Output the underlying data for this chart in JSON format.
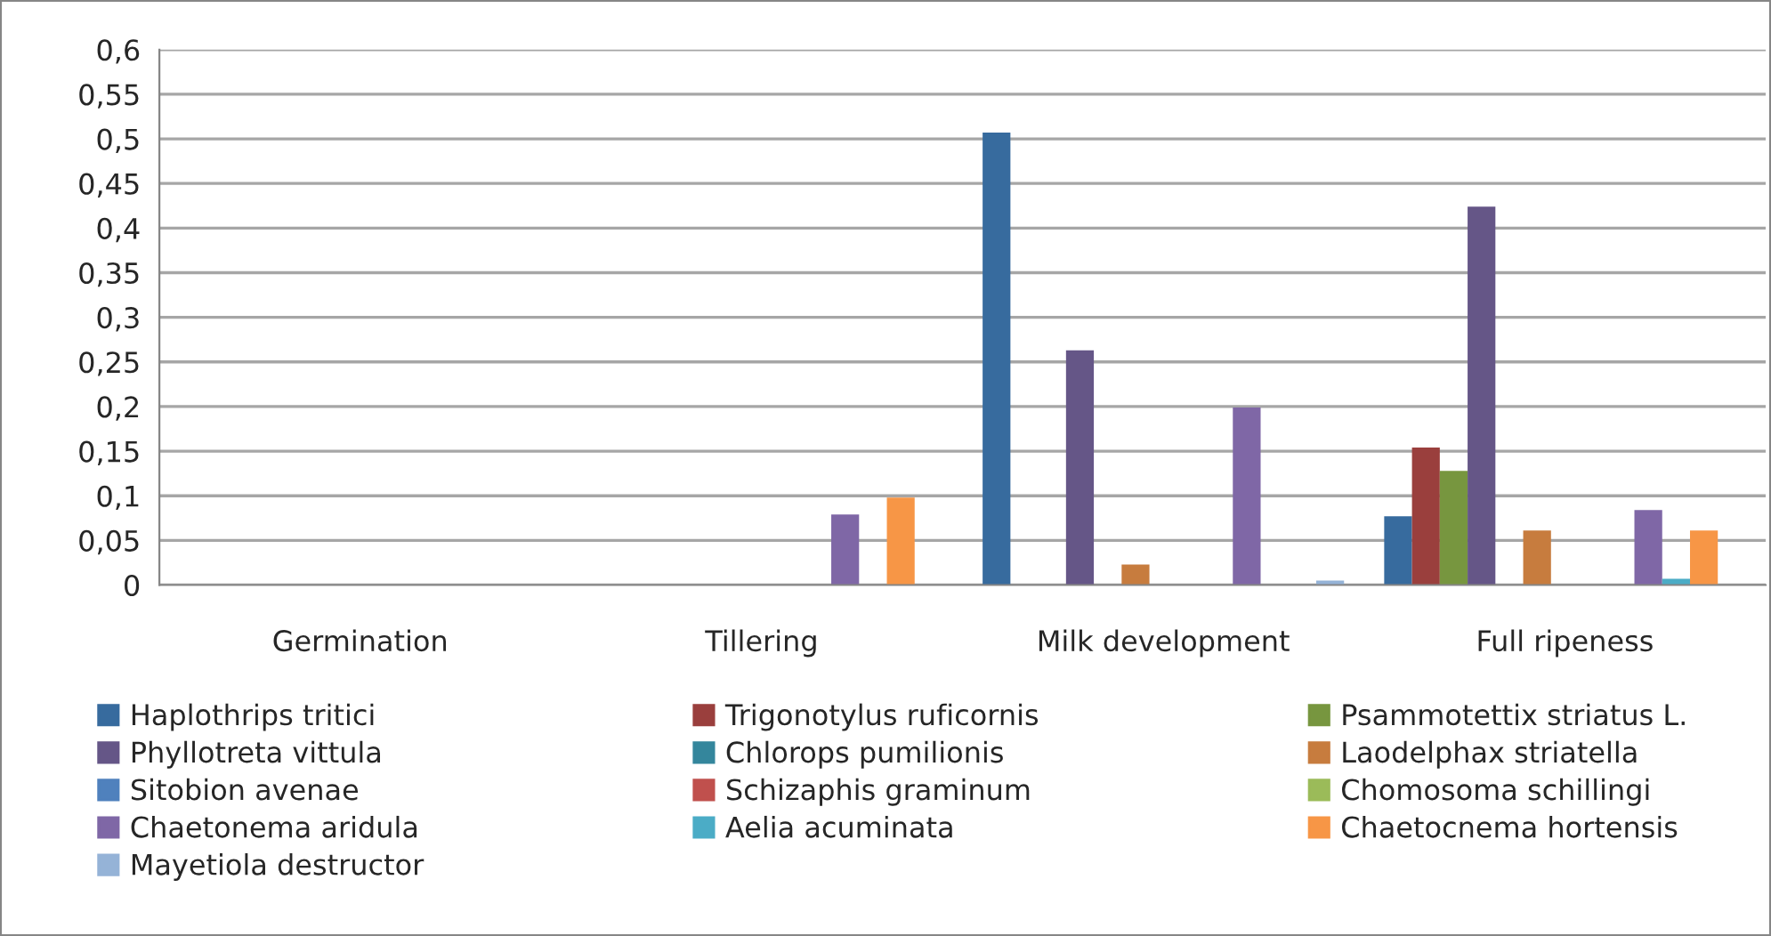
{
  "chart_data": {
    "type": "bar",
    "categories": [
      "Germination",
      "Tillering",
      "Milk development",
      "Full ripeness"
    ],
    "series": [
      {
        "name": "Haplothrips tritici",
        "color": "#376b9e",
        "values": [
          0,
          0,
          0.507,
          0.077
        ]
      },
      {
        "name": "Trigonotylus ruficornis",
        "color": "#9a3f3d",
        "values": [
          0,
          0,
          0,
          0.154
        ]
      },
      {
        "name": "Psammotettix striatus L.",
        "color": "#77963f",
        "values": [
          0,
          0,
          0,
          0.128
        ]
      },
      {
        "name": "Phyllotreta vittula",
        "color": "#655687",
        "values": [
          0,
          0,
          0.263,
          0.424
        ]
      },
      {
        "name": "Chlorops pumilionis",
        "color": "#34869c",
        "values": [
          0,
          0,
          0,
          0
        ]
      },
      {
        "name": "Laodelphax striatella",
        "color": "#c77c3e",
        "values": [
          0,
          0,
          0.023,
          0.061
        ]
      },
      {
        "name": "Sitobion avenae",
        "color": "#4f81bd",
        "values": [
          0,
          0,
          0,
          0
        ]
      },
      {
        "name": "Schizaphis graminum",
        "color": "#c0504d",
        "values": [
          0,
          0,
          0,
          0
        ]
      },
      {
        "name": "Chomosoma schillingi",
        "color": "#9bbb59",
        "values": [
          0,
          0,
          0,
          0
        ]
      },
      {
        "name": "Chaetonema aridula",
        "color": "#7f67a6",
        "values": [
          0,
          0.079,
          0.199,
          0.084
        ]
      },
      {
        "name": "Aelia acuminata",
        "color": "#4bacc6",
        "values": [
          0,
          0,
          0,
          0.007
        ]
      },
      {
        "name": "Chaetocnema hortensis",
        "color": "#f79646",
        "values": [
          0,
          0.098,
          0,
          0.061
        ]
      },
      {
        "name": "Mayetiola destructor",
        "color": "#95b3d7",
        "values": [
          0,
          0,
          0.005,
          0
        ]
      }
    ],
    "ylim": [
      0,
      0.6
    ],
    "yticks": [
      0,
      {
        "value": 0.05,
        "label": "0,05"
      },
      {
        "value": 0.1,
        "label": "0,1"
      },
      {
        "value": 0.15,
        "label": "0,15"
      },
      {
        "value": 0.2,
        "label": "0,2"
      },
      {
        "value": 0.25,
        "label": "0,25"
      },
      {
        "value": 0.3,
        "label": "0,3"
      },
      {
        "value": 0.35,
        "label": "0,35"
      },
      {
        "value": 0.4,
        "label": "0,4"
      },
      {
        "value": 0.45,
        "label": "0,45"
      },
      {
        "value": 0.5,
        "label": "0,5"
      },
      {
        "value": 0.55,
        "label": "0,55"
      },
      {
        "value": 0.6,
        "label": "0,6"
      }
    ],
    "grid": "y",
    "legend": "bottom"
  }
}
